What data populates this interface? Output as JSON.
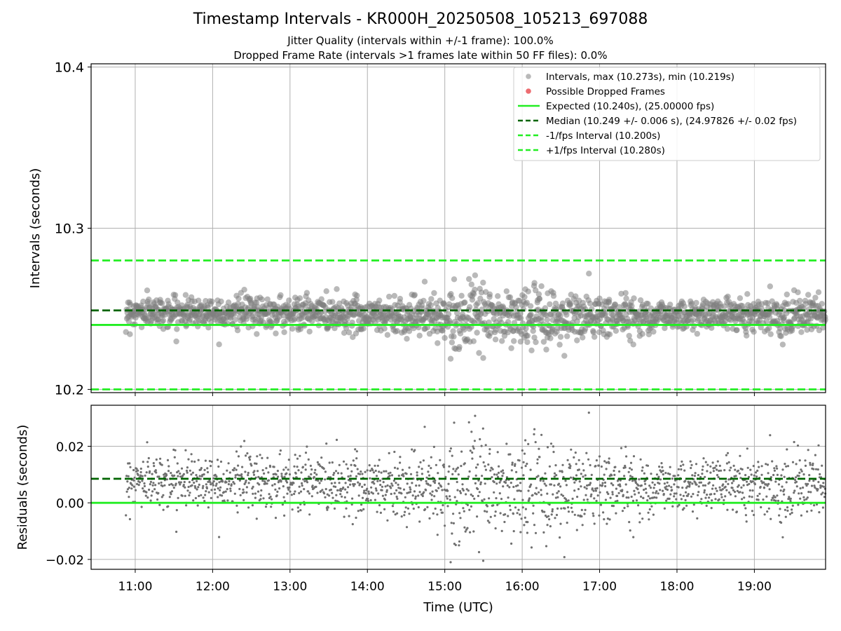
{
  "figure": {
    "title": "Timestamp Intervals - KR000H_20250508_105213_697088",
    "subtitle_1": "Jitter Quality (intervals within +/-1 frame): 100.0%",
    "subtitle_2": "Dropped Frame Rate (intervals >1 frames late within 50 FF files): 0.0%"
  },
  "colors": {
    "points": "#808080",
    "dropped": "#e8474c",
    "expected": "#22ee22",
    "median": "#006400",
    "interval_band": "#22ee22",
    "grid": "#b0b0b0"
  },
  "chart_data": [
    {
      "type": "scatter",
      "panel": "intervals",
      "ylabel": "Intervals (seconds)",
      "ylim": [
        10.198,
        10.402
      ],
      "yticks": [
        "10.2",
        "10.3",
        "10.4"
      ],
      "ytick_values": [
        10.2,
        10.3,
        10.4
      ],
      "xlim_hours": [
        10.43,
        19.92
      ],
      "xticks": [
        "11:00",
        "12:00",
        "13:00",
        "14:00",
        "15:00",
        "16:00",
        "17:00",
        "18:00",
        "19:00"
      ],
      "xtick_values": [
        11,
        12,
        13,
        14,
        15,
        16,
        17,
        18,
        19
      ],
      "grid": true,
      "legend_position": "top-right",
      "legend": [
        {
          "label": "Intervals, max (10.273s), min (10.219s)",
          "kind": "points"
        },
        {
          "label": "Possible Dropped Frames",
          "kind": "dropped"
        },
        {
          "label": "Expected (10.240s), (25.00000 fps)",
          "kind": "expected"
        },
        {
          "label": "Median (10.249 +/- 0.006 s), (24.97826 +/- 0.02 fps)",
          "kind": "median"
        },
        {
          "label": "-1/fps Interval (10.200s)",
          "kind": "band"
        },
        {
          "label": "+1/fps Interval (10.280s)",
          "kind": "band"
        }
      ],
      "lines": {
        "expected": 10.24,
        "median": 10.249,
        "minus_interval": 10.2,
        "plus_interval": 10.28
      },
      "stats": {
        "max": 10.273,
        "min": 10.219,
        "median": 10.249,
        "median_std": 0.006,
        "dropped_count": 0
      },
      "series_start_hour": 10.88,
      "series_end_hour": 19.92,
      "n_points": 1800,
      "envelope": {
        "hours": [
          10.88,
          11.5,
          12.5,
          13.5,
          14.5,
          15.0,
          15.5,
          16.0,
          16.5,
          17.0,
          17.5,
          18.0,
          18.5,
          19.0,
          19.5,
          19.92
        ],
        "center": [
          10.248,
          10.248,
          10.248,
          10.247,
          10.246,
          10.245,
          10.245,
          10.244,
          10.244,
          10.245,
          10.246,
          10.246,
          10.247,
          10.247,
          10.246,
          10.246
        ],
        "spread": [
          0.0045,
          0.0045,
          0.005,
          0.0055,
          0.006,
          0.0075,
          0.0085,
          0.009,
          0.009,
          0.0075,
          0.0055,
          0.0045,
          0.0045,
          0.005,
          0.006,
          0.006
        ]
      }
    },
    {
      "type": "scatter",
      "panel": "residuals",
      "xlabel": "Time (UTC)",
      "ylabel": "Residuals (seconds)",
      "ylim": [
        -0.0235,
        0.0345
      ],
      "yticks": [
        "−0.02",
        "0.00",
        "0.02"
      ],
      "ytick_values": [
        -0.02,
        0.0,
        0.02
      ],
      "xlim_hours": [
        10.43,
        19.92
      ],
      "xticks": [
        "11:00",
        "12:00",
        "13:00",
        "14:00",
        "15:00",
        "16:00",
        "17:00",
        "18:00",
        "19:00"
      ],
      "xtick_values": [
        11,
        12,
        13,
        14,
        15,
        16,
        17,
        18,
        19
      ],
      "grid": true,
      "lines": {
        "zero": 0.0,
        "median_offset": 0.0085
      },
      "range": {
        "max": 0.033,
        "min": -0.021
      }
    }
  ]
}
